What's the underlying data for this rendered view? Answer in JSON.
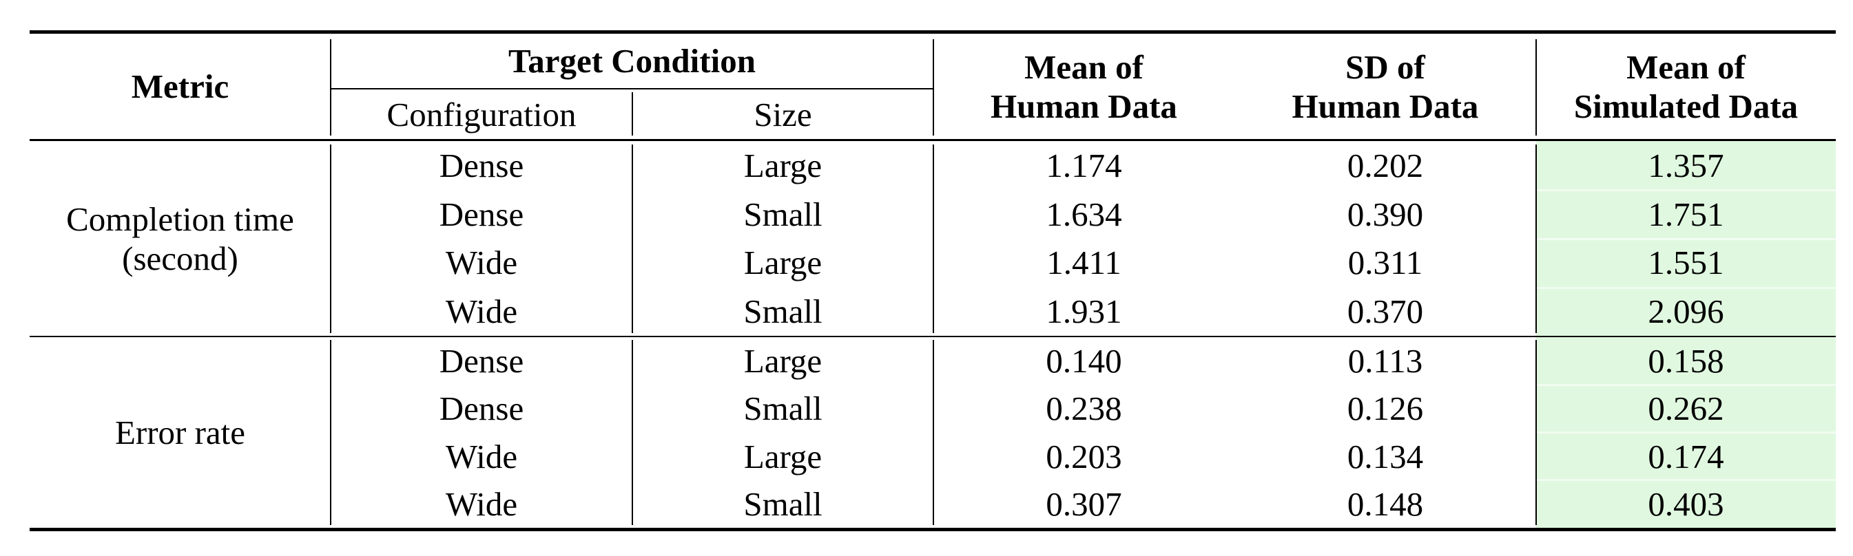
{
  "chart_data": {
    "type": "table",
    "title": "",
    "columns": [
      "Metric",
      "Target Condition / Configuration",
      "Target Condition / Size",
      "Mean of Human Data",
      "SD of Human Data",
      "Mean of Simulated Data"
    ],
    "header": {
      "metric": "Metric",
      "target_condition": "Target Condition",
      "configuration": "Configuration",
      "size": "Size",
      "mean_human": [
        "Mean of",
        "Human Data"
      ],
      "sd_human": [
        "SD of",
        "Human Data"
      ],
      "mean_simulated": [
        "Mean of",
        "Simulated Data"
      ]
    },
    "blocks": [
      {
        "metric": [
          "Completion time",
          "(second)"
        ],
        "rows": [
          {
            "configuration": "Dense",
            "size": "Large",
            "mean_human": "1.174",
            "sd_human": "0.202",
            "mean_simulated": "1.357"
          },
          {
            "configuration": "Dense",
            "size": "Small",
            "mean_human": "1.634",
            "sd_human": "0.390",
            "mean_simulated": "1.751"
          },
          {
            "configuration": "Wide",
            "size": "Large",
            "mean_human": "1.411",
            "sd_human": "0.311",
            "mean_simulated": "1.551"
          },
          {
            "configuration": "Wide",
            "size": "Small",
            "mean_human": "1.931",
            "sd_human": "0.370",
            "mean_simulated": "2.096"
          }
        ]
      },
      {
        "metric": [
          "Error rate"
        ],
        "rows": [
          {
            "configuration": "Dense",
            "size": "Large",
            "mean_human": "0.140",
            "sd_human": "0.113",
            "mean_simulated": "0.158"
          },
          {
            "configuration": "Dense",
            "size": "Small",
            "mean_human": "0.238",
            "sd_human": "0.126",
            "mean_simulated": "0.262"
          },
          {
            "configuration": "Wide",
            "size": "Large",
            "mean_human": "0.203",
            "sd_human": "0.134",
            "mean_simulated": "0.174"
          },
          {
            "configuration": "Wide",
            "size": "Small",
            "mean_human": "0.307",
            "sd_human": "0.148",
            "mean_simulated": "0.403"
          }
        ]
      }
    ],
    "layout": {
      "highlighted_column": "Mean of Simulated Data",
      "grid": "horizontal rules top/header/mid/bottom, vertical dividers between Metric|Configuration|Size|Human-data group|Simulated"
    },
    "colors": {
      "highlight_green": "#e0f8e0",
      "rule_black": "#000000"
    }
  }
}
